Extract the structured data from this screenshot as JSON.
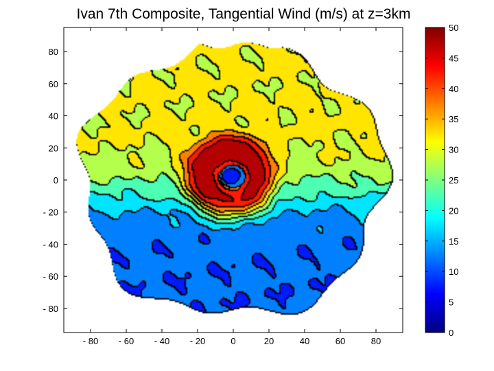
{
  "chart_data": {
    "type": "heatmap",
    "title": "Ivan 7th Composite, Tangential Wind (m/s) at z=3km",
    "xlabel": "",
    "ylabel": "",
    "xlim": [
      -95,
      95
    ],
    "ylim": [
      -95,
      95
    ],
    "x_ticks": [
      -80,
      -60,
      -40,
      -20,
      0,
      20,
      40,
      60,
      80
    ],
    "y_ticks": [
      80,
      60,
      40,
      20,
      0,
      -20,
      -40,
      -60,
      -80
    ],
    "x_tick_labels": [
      "- 80",
      "- 60",
      "- 40",
      "- 20",
      "0",
      "20",
      "40",
      "60",
      "80"
    ],
    "y_tick_labels": [
      "80",
      "60",
      "40",
      "20",
      "0",
      "- 20",
      "- 40",
      "- 60",
      "- 80"
    ],
    "colorbar": {
      "min": 0,
      "max": 50,
      "ticks": [
        50,
        45,
        40,
        35,
        30,
        25,
        20,
        15,
        10,
        5,
        0
      ],
      "tick_labels": [
        "50",
        "45",
        "40",
        "35",
        "30",
        "25",
        "20",
        "15",
        "10",
        "5",
        "0"
      ],
      "colormap": "jet"
    },
    "field": {
      "description_units": "m/s",
      "eye_center": [
        0,
        2
      ],
      "max_wind_ring_radius": 15,
      "peak_wind": 49,
      "outer_wind": 30,
      "north_wind": 31,
      "south_wind": 11,
      "data_extent_radius": 85
    }
  },
  "colors": {
    "background": "#ffffff",
    "axis": "#000000",
    "contour": "#000000"
  }
}
